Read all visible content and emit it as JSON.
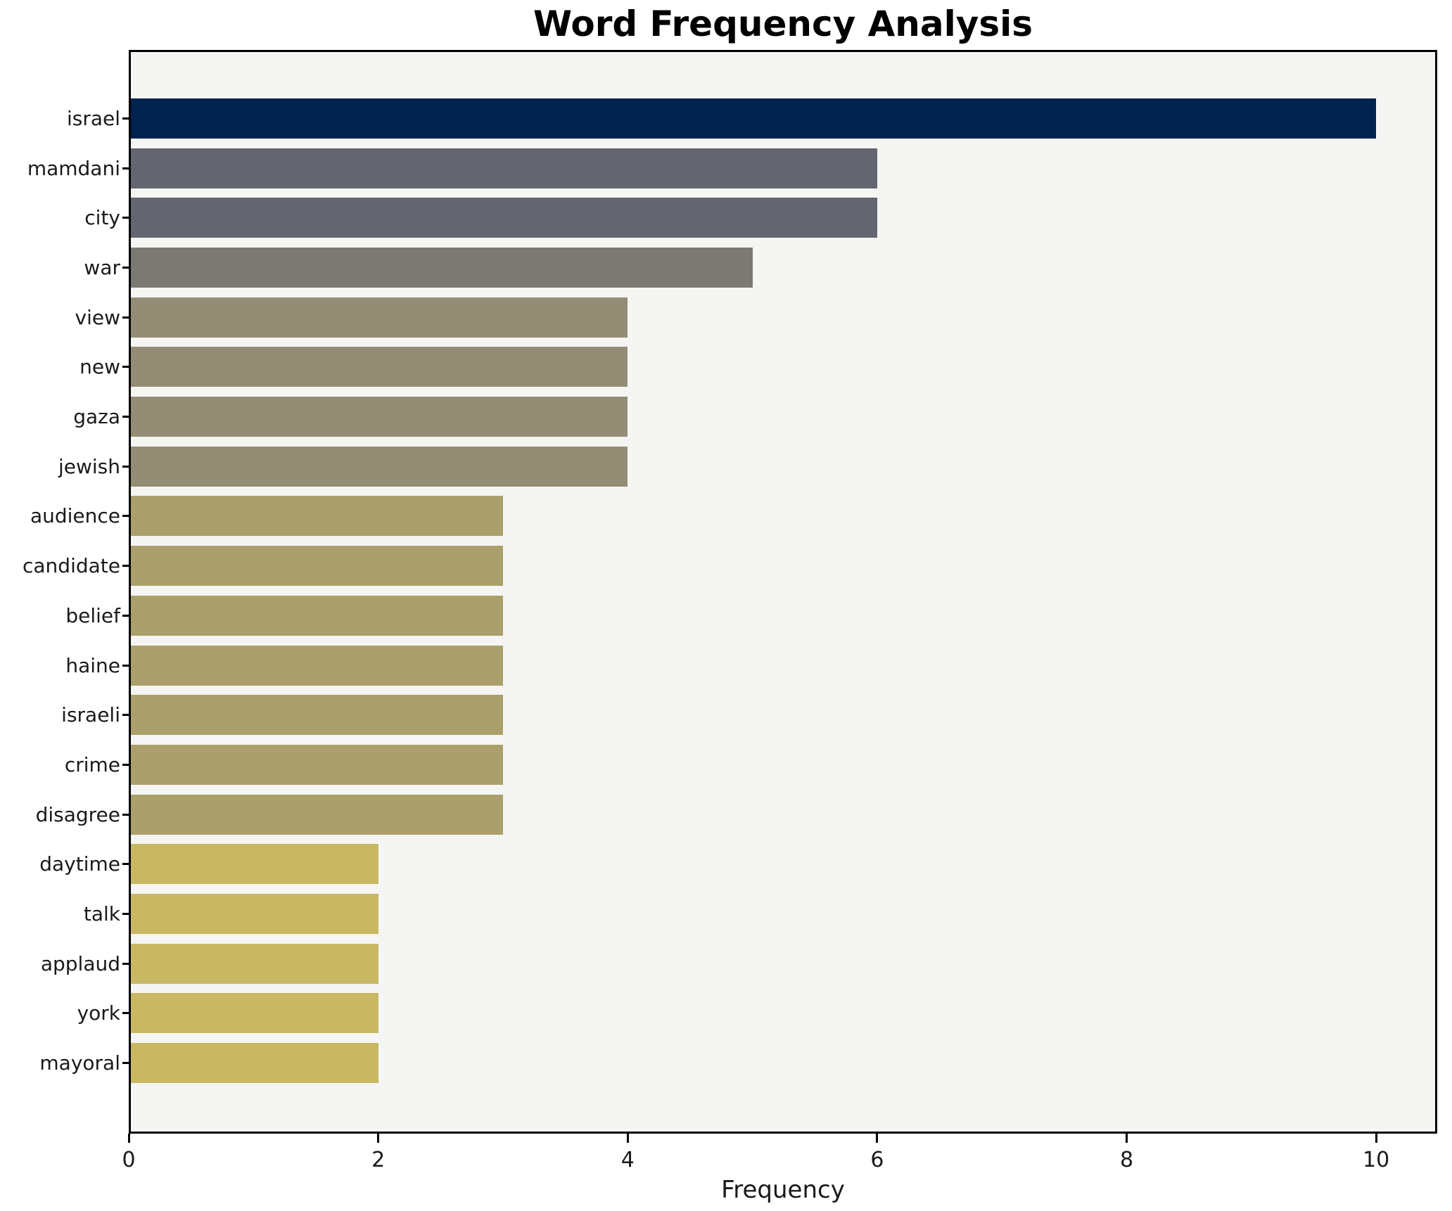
{
  "figure": {
    "background": "#ffffff",
    "plot_background": "#f5f5f3",
    "frame_color": "#000000",
    "text_color": "#1a1a1a"
  },
  "chart_data": {
    "type": "bar",
    "orientation": "horizontal",
    "title": "Word Frequency Analysis",
    "xlabel": "Frequency",
    "ylabel": "",
    "categories": [
      "israel",
      "mamdani",
      "city",
      "war",
      "view",
      "new",
      "gaza",
      "jewish",
      "audience",
      "candidate",
      "belief",
      "haine",
      "israeli",
      "crime",
      "disagree",
      "daytime",
      "talk",
      "applaud",
      "york",
      "mayoral"
    ],
    "values": [
      10,
      6,
      6,
      5,
      4,
      4,
      4,
      4,
      3,
      3,
      3,
      3,
      3,
      3,
      3,
      2,
      2,
      2,
      2,
      2
    ],
    "bar_colors": [
      "#00224e",
      "#63666f",
      "#63666f",
      "#7b7a72",
      "#948d76",
      "#948d76",
      "#948d76",
      "#948d76",
      "#aba06b",
      "#aba06b",
      "#aba06b",
      "#aba06b",
      "#aba06b",
      "#aba06b",
      "#aba06b",
      "#c8b863",
      "#c8b863",
      "#c8b863",
      "#c8b863",
      "#c8b863"
    ],
    "xticks": [
      "0",
      "2",
      "4",
      "6",
      "8",
      "10"
    ],
    "xtick_values": [
      0,
      2,
      4,
      6,
      8,
      10
    ],
    "xlim": [
      0,
      10.49
    ],
    "grid": false,
    "legend_position": "none"
  }
}
